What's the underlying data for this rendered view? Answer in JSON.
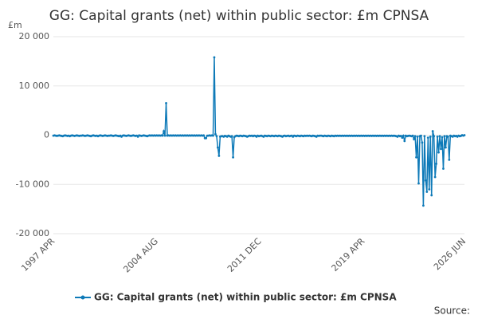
{
  "chart_data": {
    "type": "line",
    "title": "GG: Capital grants (net) within public sector: £m CPNSA",
    "y_unit": "£m",
    "source": "Source:",
    "categories": [
      "1997 APR",
      null,
      null,
      null,
      null,
      null,
      null,
      null,
      null,
      null,
      null,
      null,
      null,
      null,
      null,
      null,
      null,
      null,
      null,
      null,
      null,
      null,
      null,
      null,
      null,
      null,
      null,
      null,
      null,
      null,
      null,
      null,
      null,
      null,
      null,
      null,
      null,
      null,
      null,
      null,
      null,
      null,
      null,
      null,
      null,
      null,
      null,
      null,
      null,
      null,
      null,
      null,
      null,
      null,
      null,
      null,
      null,
      null,
      null,
      null,
      null,
      null,
      null,
      null,
      null,
      null,
      null,
      null,
      null,
      null,
      null,
      null,
      null,
      null,
      null,
      null,
      null,
      null,
      null,
      null,
      null,
      null,
      null,
      null,
      null,
      null,
      null,
      null,
      "2004 AUG",
      null,
      null,
      null,
      null,
      null,
      null,
      null,
      null,
      null,
      null,
      null,
      null,
      null,
      null,
      null,
      null,
      null,
      null,
      null,
      null,
      null,
      null,
      null,
      null,
      null,
      null,
      null,
      null,
      null,
      null,
      null,
      null,
      null,
      null,
      null,
      null,
      null,
      null,
      null,
      null,
      null,
      null,
      null,
      null,
      null,
      null,
      null,
      null,
      null,
      null,
      null,
      null,
      null,
      null,
      null,
      null,
      null,
      null,
      null,
      null,
      null,
      null,
      null,
      null,
      null,
      null,
      null,
      null,
      null,
      null,
      null,
      null,
      null,
      null,
      null,
      null,
      null,
      null,
      null,
      null,
      null,
      null,
      null,
      null,
      null,
      null,
      null,
      "2011 DEC",
      null,
      null,
      null,
      null,
      null,
      null,
      null,
      null,
      null,
      null,
      null,
      null,
      null,
      null,
      null,
      null,
      null,
      null,
      null,
      null,
      null,
      null,
      null,
      null,
      null,
      null,
      null,
      null,
      null,
      null,
      null,
      null,
      null,
      null,
      null,
      null,
      null,
      null,
      null,
      null,
      null,
      null,
      null,
      null,
      null,
      null,
      null,
      null,
      null,
      null,
      null,
      null,
      null,
      null,
      null,
      null,
      null,
      null,
      null,
      null,
      null,
      null,
      null,
      null,
      null,
      null,
      null,
      null,
      null,
      null,
      null,
      null,
      null,
      null,
      null,
      null,
      null,
      null,
      null,
      null,
      null,
      null,
      null,
      null,
      null,
      null,
      null,
      "2019 APR",
      null,
      null,
      null,
      null,
      null,
      null,
      null,
      null,
      null,
      null,
      null,
      null,
      null,
      null,
      null,
      null,
      null,
      null,
      null,
      null,
      null,
      null,
      null,
      null,
      null,
      null,
      null,
      null,
      null,
      null,
      null,
      null,
      null,
      null,
      null,
      null,
      null,
      null,
      null,
      null,
      null,
      null,
      null,
      null,
      null,
      null,
      null,
      null,
      null,
      null,
      null,
      null,
      null,
      null,
      null,
      null,
      null,
      null,
      null,
      null,
      null,
      null,
      null,
      null,
      null,
      null,
      null,
      null,
      null,
      null,
      null,
      null,
      null,
      null,
      null,
      null,
      null,
      null,
      null,
      null,
      null,
      null,
      null,
      null,
      null,
      "2026 JUN"
    ],
    "series": [
      {
        "name": "GG: Capital grants (net) within public sector: £m CPNSA",
        "color": "#0e7ab8",
        "values": [
          -100,
          -50,
          -100,
          -150,
          -100,
          -50,
          -100,
          -150,
          -200,
          -100,
          -50,
          -100,
          -150,
          -100,
          -200,
          -100,
          -50,
          -100,
          -150,
          -100,
          -50,
          -100,
          -150,
          -100,
          -100,
          -50,
          -100,
          -150,
          -100,
          -50,
          -100,
          -150,
          -200,
          -100,
          -50,
          -100,
          -150,
          -100,
          -200,
          -100,
          -50,
          -100,
          -150,
          -100,
          -50,
          -100,
          -150,
          -100,
          -100,
          -50,
          -100,
          -150,
          -100,
          -50,
          -100,
          -150,
          -200,
          -100,
          -300,
          -100,
          -50,
          -100,
          -150,
          -100,
          -50,
          -100,
          -150,
          -100,
          -50,
          -100,
          -150,
          -100,
          -300,
          -50,
          -100,
          -150,
          -100,
          -50,
          -100,
          -150,
          -200,
          -100,
          -50,
          -100,
          -50,
          -100,
          -50,
          -100,
          -50,
          -100,
          -50,
          -100,
          -50,
          -100,
          800,
          -100,
          6500,
          -100,
          -50,
          -100,
          -50,
          -100,
          -50,
          -100,
          -50,
          -100,
          -50,
          -100,
          -50,
          -100,
          -50,
          -100,
          -50,
          -100,
          -50,
          -100,
          -50,
          -100,
          -50,
          -100,
          -50,
          -100,
          -50,
          -100,
          -50,
          -100,
          -50,
          -100,
          -50,
          -600,
          -600,
          -100,
          -100,
          -50,
          -100,
          -50,
          -100,
          15800,
          200,
          -200,
          -2500,
          -4200,
          -300,
          -200,
          -200,
          -300,
          -150,
          -200,
          -300,
          -100,
          -200,
          -300,
          -200,
          -4500,
          -400,
          -200,
          -100,
          -150,
          -200,
          -100,
          -150,
          -200,
          -100,
          -150,
          -200,
          -300,
          -200,
          -100,
          -150,
          -100,
          -200,
          -100,
          -150,
          -300,
          -100,
          -200,
          -150,
          -100,
          -200,
          -300,
          -100,
          -150,
          -200,
          -100,
          -150,
          -200,
          -100,
          -150,
          -200,
          -100,
          -150,
          -200,
          -100,
          -150,
          -200,
          -300,
          -150,
          -100,
          -200,
          -150,
          -100,
          -200,
          -150,
          -100,
          -300,
          -100,
          -150,
          -200,
          -100,
          -150,
          -200,
          -100,
          -150,
          -200,
          -100,
          -150,
          -100,
          -150,
          -100,
          -150,
          -200,
          -100,
          -150,
          -200,
          -300,
          -100,
          -150,
          -100,
          -100,
          -150,
          -200,
          -100,
          -150,
          -200,
          -100,
          -150,
          -200,
          -100,
          -150,
          -200,
          -100,
          -150,
          -100,
          -150,
          -100,
          -150,
          -100,
          -150,
          -100,
          -150,
          -100,
          -150,
          -100,
          -150,
          -100,
          -150,
          -100,
          -150,
          -100,
          -150,
          -100,
          -150,
          -100,
          -150,
          -100,
          -150,
          -100,
          -150,
          -100,
          -150,
          -100,
          -150,
          -100,
          -150,
          -100,
          -150,
          -100,
          -150,
          -100,
          -150,
          -100,
          -150,
          -100,
          -150,
          -100,
          -150,
          -100,
          -150,
          -100,
          -150,
          -100,
          -150,
          -200,
          -300,
          -100,
          -200,
          -150,
          -500,
          -100,
          -1200,
          -100,
          -200,
          -150,
          -100,
          -150,
          -200,
          -100,
          -800,
          -200,
          -4500,
          -300,
          -9800,
          -200,
          -100,
          -1500,
          -14300,
          -200,
          -9200,
          -11500,
          -500,
          -11000,
          -300,
          -12200,
          800,
          -200,
          -8500,
          -5800,
          -300,
          -3500,
          -200,
          -2800,
          -400,
          -6800,
          -200,
          -2500,
          -200,
          -300,
          -5000,
          -100,
          -200,
          -300,
          -100,
          -200,
          -150,
          -300,
          -100,
          -200,
          -150,
          0,
          -100,
          0
        ]
      }
    ],
    "ylim": [
      -20000,
      20000
    ],
    "yticks": [
      {
        "value": -20000,
        "label": "-20 000"
      },
      {
        "value": -10000,
        "label": "-10 000"
      },
      0,
      {
        "value": 10000,
        "label": "10 000"
      },
      {
        "value": 20000,
        "label": "20 000"
      }
    ],
    "grid": true
  }
}
